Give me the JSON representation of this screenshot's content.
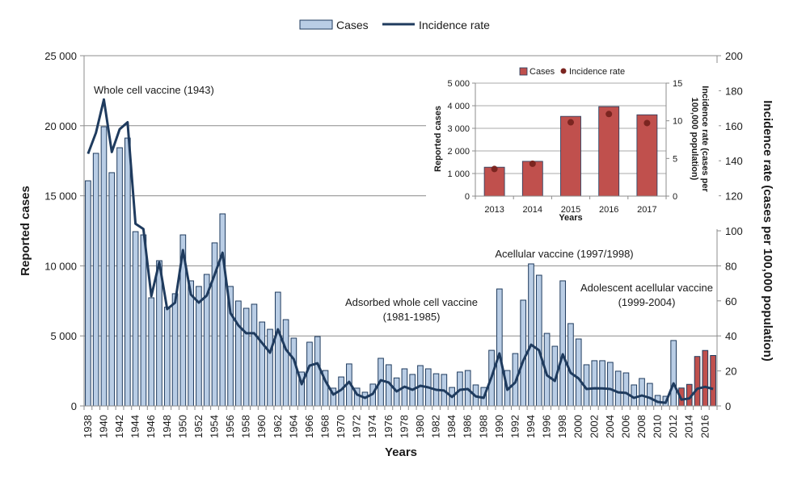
{
  "chart_data": {
    "type": "bar",
    "title": "",
    "xlabel": "Years",
    "ylabel": "Reported cases",
    "y2label": "Incidence rate (cases per 100,000 population)",
    "ylim": [
      0,
      25000
    ],
    "y2lim": [
      0,
      200
    ],
    "yticks": [
      "0",
      "5 000",
      "10 000",
      "15 000",
      "20 000",
      "25 000"
    ],
    "y2ticks": [
      "0",
      "20",
      "40",
      "60",
      "80",
      "100",
      "120",
      "140",
      "160",
      "180",
      "200"
    ],
    "grid": true,
    "legend": {
      "placement": "top-center",
      "entries": [
        {
          "label": "Cases",
          "kind": "bar",
          "color": "#b9cde5"
        },
        {
          "label": "Incidence rate",
          "kind": "line",
          "color": "#1f3b5e"
        }
      ]
    },
    "colors": {
      "bar_fill": "#b9cde5",
      "bar_fill_recent": "#c0504d",
      "bar_stroke": "#1f3b5e",
      "line": "#1f3b5e",
      "grid": "#8c8c8c"
    },
    "highlight_from_year": 2013,
    "x": [
      1938,
      1939,
      1940,
      1941,
      1942,
      1943,
      1944,
      1945,
      1946,
      1947,
      1948,
      1949,
      1950,
      1951,
      1952,
      1953,
      1954,
      1955,
      1956,
      1957,
      1958,
      1959,
      1960,
      1961,
      1962,
      1963,
      1964,
      1965,
      1966,
      1967,
      1968,
      1969,
      1970,
      1971,
      1972,
      1973,
      1974,
      1975,
      1976,
      1977,
      1978,
      1979,
      1980,
      1981,
      1982,
      1983,
      1984,
      1985,
      1986,
      1987,
      1988,
      1989,
      1990,
      1991,
      1992,
      1993,
      1994,
      1995,
      1996,
      1997,
      1998,
      1999,
      2000,
      2001,
      2002,
      2003,
      2004,
      2005,
      2006,
      2007,
      2008,
      2009,
      2010,
      2011,
      2012,
      2013,
      2014,
      2015,
      2016,
      2017
    ],
    "series": [
      {
        "name": "Cases",
        "axis": "left",
        "kind": "bar",
        "values": [
          16070,
          18030,
          19930,
          16650,
          18430,
          19120,
          12440,
          12210,
          7720,
          10370,
          7050,
          8010,
          12210,
          8930,
          8530,
          9390,
          11640,
          13710,
          8530,
          7490,
          6970,
          7260,
          5990,
          5470,
          8120,
          6160,
          4840,
          2420,
          4550,
          4950,
          2530,
          1270,
          2070,
          3000,
          1270,
          980,
          1560,
          3400,
          2940,
          2000,
          2650,
          2250,
          2880,
          2650,
          2300,
          2250,
          1320,
          2420,
          2530,
          1500,
          1320,
          3970,
          8350,
          2530,
          3740,
          7550,
          10140,
          9330,
          5180,
          4260,
          8930,
          5880,
          4780,
          2940,
          3230,
          3230,
          3110,
          2480,
          2360,
          1500,
          1960,
          1610,
          750,
          690,
          4670,
          1280,
          1540,
          3530,
          3960,
          3600
        ]
      },
      {
        "name": "Incidence rate",
        "axis": "right",
        "kind": "line",
        "values": [
          144,
          156,
          175,
          145,
          158,
          162,
          104,
          101,
          62.7,
          82,
          55.3,
          59,
          89,
          63.6,
          59,
          63,
          75,
          87.5,
          53,
          46,
          41.5,
          41.5,
          36,
          30.4,
          43.8,
          32.3,
          26.7,
          12.4,
          23,
          24.4,
          14.3,
          6.5,
          9.2,
          13.8,
          6.5,
          4.6,
          6.9,
          14.7,
          13.4,
          8.3,
          11,
          9.2,
          11.5,
          10.6,
          9.2,
          8.8,
          5.1,
          9.2,
          9.7,
          5.5,
          4.6,
          16.6,
          30,
          9.2,
          13.4,
          25.8,
          35,
          31.8,
          17.5,
          14.3,
          29.5,
          18.9,
          15.7,
          9.7,
          10.1,
          10,
          9.7,
          7.8,
          7.4,
          4.6,
          6,
          4.6,
          2.3,
          1.8,
          12.9,
          3.6,
          4.3,
          9.8,
          10.9,
          9.7
        ]
      }
    ],
    "annotations": [
      {
        "lines": [
          "Whole cell vaccine (1943)"
        ],
        "anchor_year": 1943
      },
      {
        "lines": [
          "Adsorbed whole cell vaccine",
          "(1981-1985)"
        ],
        "anchor_year": 1981
      },
      {
        "lines": [
          "Acellular vaccine (1997/1998)"
        ],
        "anchor_year": 1997
      },
      {
        "lines": [
          "Adolescent acellular vaccine",
          "(1999-2004)"
        ],
        "anchor_year": 1999
      }
    ],
    "inset": {
      "type": "bar",
      "xlabel": "Years",
      "ylabel": "Reported cases",
      "y2label_lines": [
        "Incidence rate (cases per",
        "100,000 population)"
      ],
      "ylim": [
        0,
        5000
      ],
      "y2lim": [
        0,
        15
      ],
      "yticks": [
        "0",
        "1 000",
        "2 000",
        "3 000",
        "4 000",
        "5 000"
      ],
      "y2ticks": [
        "0",
        "5",
        "10",
        "15"
      ],
      "categories": [
        "2013",
        "2014",
        "2015",
        "2016",
        "2017"
      ],
      "legend": [
        {
          "label": "Cases",
          "kind": "bar",
          "color": "#c0504d"
        },
        {
          "label": "Incidence rate",
          "kind": "dot",
          "color": "#7b2520"
        }
      ],
      "series": [
        {
          "name": "Cases",
          "axis": "left",
          "kind": "bar",
          "values": [
            1280,
            1540,
            3530,
            3960,
            3600
          ]
        },
        {
          "name": "Incidence rate",
          "axis": "right",
          "kind": "dot",
          "values": [
            3.6,
            4.3,
            9.8,
            10.9,
            9.7
          ]
        }
      ]
    }
  }
}
